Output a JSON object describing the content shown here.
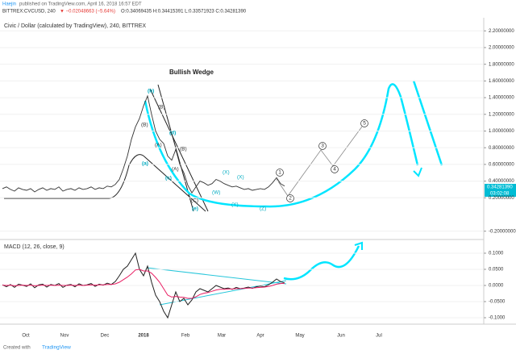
{
  "header": {
    "author": "Haejin",
    "published": "published on TradingView.com, April 16, 2018 16:57 EDT",
    "symbol": "BITTREX:CVCUSD, 240",
    "change": "▼ −0.02048663 (−5.64%)",
    "ohlc": "O:0.34069435 H:0.34415391 L:0.33571923 C:0.34281390",
    "price_tag": "0.34281390",
    "time_tag": "03:02:08"
  },
  "time_axis": [
    "Oct",
    "Nov",
    "Dec",
    "2018",
    "Feb",
    "Mar",
    "Apr",
    "May",
    "Jun",
    "Jul"
  ],
  "footer": {
    "created": "Created with",
    "brand": "TradingView"
  },
  "chart_data": [
    {
      "type": "line",
      "title": "Civic / Dollar (calculated by TradingView), 240, BITTREX",
      "color": "#333333",
      "values": [
        0.31,
        0.33,
        0.3,
        0.28,
        0.32,
        0.3,
        0.29,
        0.31,
        0.27,
        0.3,
        0.32,
        0.29,
        0.31,
        0.3,
        0.33,
        0.28,
        0.3,
        0.31,
        0.29,
        0.32,
        0.3,
        0.31,
        0.33,
        0.3,
        0.32,
        0.31,
        0.34,
        0.33,
        0.36,
        0.42,
        0.55,
        0.7,
        0.9,
        1.05,
        1.15,
        1.3,
        1.42,
        1.2,
        1.0,
        0.9,
        0.85,
        0.7,
        0.65,
        0.78,
        0.6,
        0.5,
        0.35,
        0.26,
        0.33,
        0.4,
        0.38,
        0.35,
        0.37,
        0.42,
        0.4,
        0.37,
        0.35,
        0.33,
        0.34,
        0.32,
        0.3,
        0.31,
        0.29,
        0.3,
        0.31,
        0.3,
        0.33,
        0.38,
        0.44,
        0.37,
        0.34
      ],
      "ylim": [
        -0.29,
        2.28
      ],
      "yticks": [
        {
          "value": 2.2,
          "label": "2.20000000"
        },
        {
          "value": 2.0,
          "label": "2.00000000"
        },
        {
          "value": 1.8,
          "label": "1.80000000"
        },
        {
          "value": 1.6,
          "label": "1.60000000"
        },
        {
          "value": 1.4,
          "label": "1.40000000"
        },
        {
          "value": 1.2,
          "label": "1.20000000"
        },
        {
          "value": 1.0,
          "label": "1.00000000"
        },
        {
          "value": 0.8,
          "label": "0.80000000"
        },
        {
          "value": 0.6,
          "label": "0.60000000"
        },
        {
          "value": 0.4,
          "label": "0.40000000"
        },
        {
          "value": 0.2,
          "label": "0.20000000"
        },
        {
          "value": -0.2,
          "label": "-0.20000000"
        }
      ],
      "annotations": [
        "Bullish Wedge",
        "(b)",
        "(a)",
        "(c)",
        "(d)",
        "(e)",
        "(B)",
        "(B)",
        "(A)",
        "(B)",
        "(A)",
        "(C)",
        "(X)",
        "(X)",
        "(W)",
        "(Y)",
        "(Z)",
        "1",
        "2",
        "3",
        "4",
        "5"
      ]
    },
    {
      "type": "line",
      "title": "MACD (12, 26, close, 9)",
      "series": [
        {
          "color": "#222222",
          "values": [
            0.002,
            -0.004,
            0.003,
            -0.006,
            0.004,
            0.001,
            -0.003,
            0.005,
            -0.007,
            0.002,
            0.004,
            -0.005,
            0.003,
            0.0,
            0.006,
            -0.006,
            0.001,
            0.003,
            -0.004,
            0.005,
            0.0,
            0.002,
            0.006,
            -0.003,
            0.004,
            0.001,
            0.007,
            0.003,
            0.012,
            0.03,
            0.05,
            0.06,
            0.08,
            0.1,
            0.05,
            0.03,
            0.06,
            0.01,
            -0.03,
            -0.05,
            -0.08,
            -0.1,
            -0.06,
            -0.02,
            -0.05,
            -0.04,
            -0.06,
            -0.045,
            -0.02,
            -0.01,
            -0.015,
            -0.02,
            -0.01,
            0.0,
            -0.005,
            -0.01,
            -0.008,
            -0.012,
            -0.006,
            -0.01,
            -0.008,
            -0.005,
            -0.009,
            -0.004,
            -0.002,
            -0.004,
            0.002,
            0.01,
            0.02,
            0.012,
            0.008
          ]
        },
        {
          "color": "#e91e63",
          "values": [
            0.001,
            0.0,
            0.001,
            -0.001,
            0.0,
            0.001,
            0.0,
            0.001,
            -0.001,
            0.0,
            0.001,
            0.0,
            0.001,
            0.0,
            0.001,
            0.0,
            0.0,
            0.001,
            0.0,
            0.001,
            0.0,
            0.001,
            0.002,
            0.001,
            0.002,
            0.002,
            0.003,
            0.003,
            0.005,
            0.01,
            0.018,
            0.026,
            0.036,
            0.048,
            0.05,
            0.045,
            0.045,
            0.038,
            0.025,
            0.01,
            -0.01,
            -0.03,
            -0.036,
            -0.034,
            -0.036,
            -0.037,
            -0.04,
            -0.04,
            -0.035,
            -0.028,
            -0.024,
            -0.022,
            -0.018,
            -0.014,
            -0.012,
            -0.012,
            -0.011,
            -0.011,
            -0.01,
            -0.01,
            -0.009,
            -0.008,
            -0.008,
            -0.007,
            -0.006,
            -0.005,
            -0.003,
            0.0,
            0.004,
            0.006,
            0.007
          ]
        }
      ],
      "ylim": [
        -0.115,
        0.14
      ],
      "yticks": [
        {
          "value": 0.1,
          "label": "0.1000"
        },
        {
          "value": 0.05,
          "label": "0.0500"
        },
        {
          "value": 0.0,
          "label": "0.0000"
        },
        {
          "value": -0.05,
          "label": "-0.0500"
        },
        {
          "value": -0.1,
          "label": "-0.1000"
        }
      ]
    }
  ]
}
